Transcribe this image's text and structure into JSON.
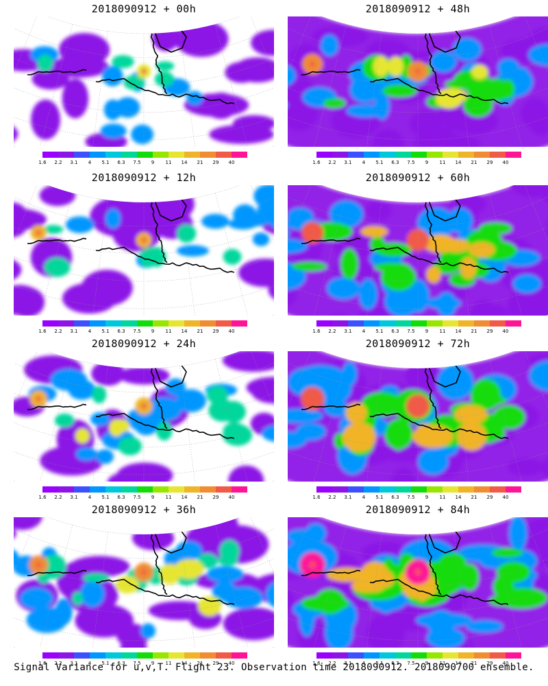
{
  "footer": "Signal Variance for u,v,T. Flight 23. Observation time 2018090912. 2018090700 ensemble.",
  "colorbar": {
    "labels": [
      "1.6",
      "2.2",
      "3.1",
      "4",
      "5.1",
      "6.3",
      "7.5",
      "9",
      "11",
      "14",
      "21",
      "29",
      "40"
    ],
    "colors": [
      "#9a00ff",
      "#8c14e6",
      "#3c50ff",
      "#0096ff",
      "#00c8dc",
      "#00d79b",
      "#14dc0a",
      "#96e600",
      "#e6e632",
      "#f0b428",
      "#f08c32",
      "#f05a46",
      "#ff1496"
    ]
  },
  "panels": [
    {
      "title": "2018090912 + 00h",
      "intensity": 1
    },
    {
      "title": "2018090912 + 48h",
      "intensity": 5
    },
    {
      "title": "2018090912 + 12h",
      "intensity": 2
    },
    {
      "title": "2018090912 + 60h",
      "intensity": 6
    },
    {
      "title": "2018090912 + 24h",
      "intensity": 3
    },
    {
      "title": "2018090912 + 72h",
      "intensity": 7
    },
    {
      "title": "2018090912 + 36h",
      "intensity": 4
    },
    {
      "title": "2018090912 + 84h",
      "intensity": 8
    }
  ],
  "chart_data": {
    "type": "heatmap",
    "title": "Signal Variance for u,v,T. Flight 23. Observation time 2018090912. 2018090700 ensemble.",
    "colorbar_levels": [
      1.6,
      2.2,
      3.1,
      4,
      5.1,
      6.3,
      7.5,
      9,
      11,
      14,
      21,
      29,
      40
    ],
    "panels": [
      "2018090912 + 00h",
      "2018090912 + 48h",
      "2018090912 + 12h",
      "2018090912 + 60h",
      "2018090912 + 24h",
      "2018090912 + 72h",
      "2018090912 + 36h",
      "2018090912 + 84h"
    ],
    "grid": "on"
  }
}
